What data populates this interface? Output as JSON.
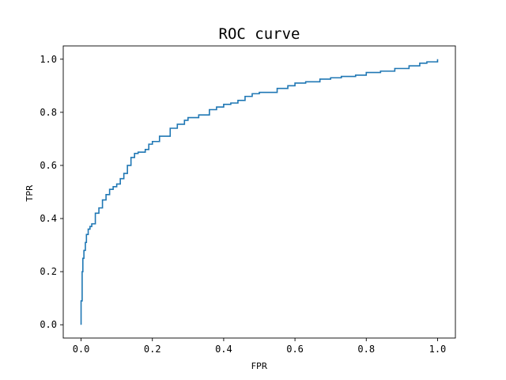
{
  "chart_data": {
    "type": "line",
    "title": "ROC curve",
    "xlabel": "FPR",
    "ylabel": "TPR",
    "xlim": [
      -0.05,
      1.05
    ],
    "ylim": [
      -0.05,
      1.05
    ],
    "grid": false,
    "x_ticks": [
      "0.0",
      "0.2",
      "0.4",
      "0.6",
      "0.8",
      "1.0"
    ],
    "y_ticks": [
      "0.0",
      "0.2",
      "0.4",
      "0.6",
      "0.8",
      "1.0"
    ],
    "x_tick_values": [
      0.0,
      0.2,
      0.4,
      0.6,
      0.8,
      1.0
    ],
    "y_tick_values": [
      0.0,
      0.2,
      0.4,
      0.6,
      0.8,
      1.0
    ],
    "line_color": "#1f77b4",
    "series": [
      {
        "x": [
          0.0,
          0.0,
          0.003,
          0.005,
          0.008,
          0.012,
          0.015,
          0.02,
          0.025,
          0.03,
          0.04,
          0.05,
          0.06,
          0.07,
          0.08,
          0.09,
          0.1,
          0.11,
          0.12,
          0.13,
          0.14,
          0.15,
          0.16,
          0.18,
          0.19,
          0.2,
          0.22,
          0.25,
          0.27,
          0.29,
          0.3,
          0.33,
          0.36,
          0.38,
          0.4,
          0.42,
          0.44,
          0.46,
          0.48,
          0.5,
          0.55,
          0.58,
          0.6,
          0.63,
          0.67,
          0.7,
          0.73,
          0.77,
          0.8,
          0.84,
          0.88,
          0.92,
          0.95,
          0.97,
          1.0
        ],
        "y": [
          0.0,
          0.09,
          0.2,
          0.25,
          0.28,
          0.31,
          0.34,
          0.36,
          0.37,
          0.38,
          0.42,
          0.44,
          0.47,
          0.49,
          0.51,
          0.52,
          0.53,
          0.55,
          0.57,
          0.6,
          0.63,
          0.645,
          0.65,
          0.66,
          0.68,
          0.69,
          0.71,
          0.74,
          0.755,
          0.77,
          0.78,
          0.79,
          0.81,
          0.82,
          0.83,
          0.835,
          0.845,
          0.86,
          0.87,
          0.875,
          0.89,
          0.9,
          0.91,
          0.915,
          0.925,
          0.93,
          0.935,
          0.94,
          0.95,
          0.955,
          0.965,
          0.975,
          0.985,
          0.99,
          1.0
        ]
      }
    ]
  }
}
